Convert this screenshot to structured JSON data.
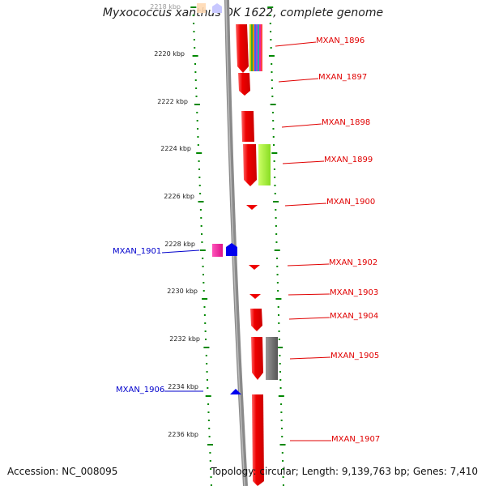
{
  "title": "Myxococcus xanthus DK 1622, complete genome",
  "accession": "Accession: NC_008095",
  "summary": "Topology: circular; Length: 9,139,763 bp; Genes: 7,410",
  "ticks": [
    {
      "label": "2218 kbp",
      "faded": true
    },
    {
      "label": "2220 kbp"
    },
    {
      "label": "2222 kbp"
    },
    {
      "label": "2224 kbp"
    },
    {
      "label": "2226 kbp"
    },
    {
      "label": "2228 kbp"
    },
    {
      "label": "2230 kbp"
    },
    {
      "label": "2232 kbp"
    },
    {
      "label": "2234 kbp"
    },
    {
      "label": "2236 kbp"
    }
  ],
  "genes_right": [
    {
      "label": "MXAN_1896"
    },
    {
      "label": "MXAN_1897"
    },
    {
      "label": "MXAN_1898"
    },
    {
      "label": "MXAN_1899"
    },
    {
      "label": "MXAN_1900"
    },
    {
      "label": "MXAN_1902"
    },
    {
      "label": "MXAN_1903"
    },
    {
      "label": "MXAN_1904"
    },
    {
      "label": "MXAN_1905"
    },
    {
      "label": "MXAN_1907"
    }
  ],
  "genes_left": [
    {
      "label": "MXAN_1901"
    },
    {
      "label": "MXAN_1906"
    }
  ],
  "colors": {
    "gene_red": "#ee0000",
    "gene_blue": "#0000ee",
    "lime": "#99ee33",
    "gray_block": "#666666",
    "magenta": "#ee2299",
    "dots_green": "#008800",
    "backbone": "#888888",
    "label_red": "#e00000",
    "label_blue": "#0000cc"
  }
}
